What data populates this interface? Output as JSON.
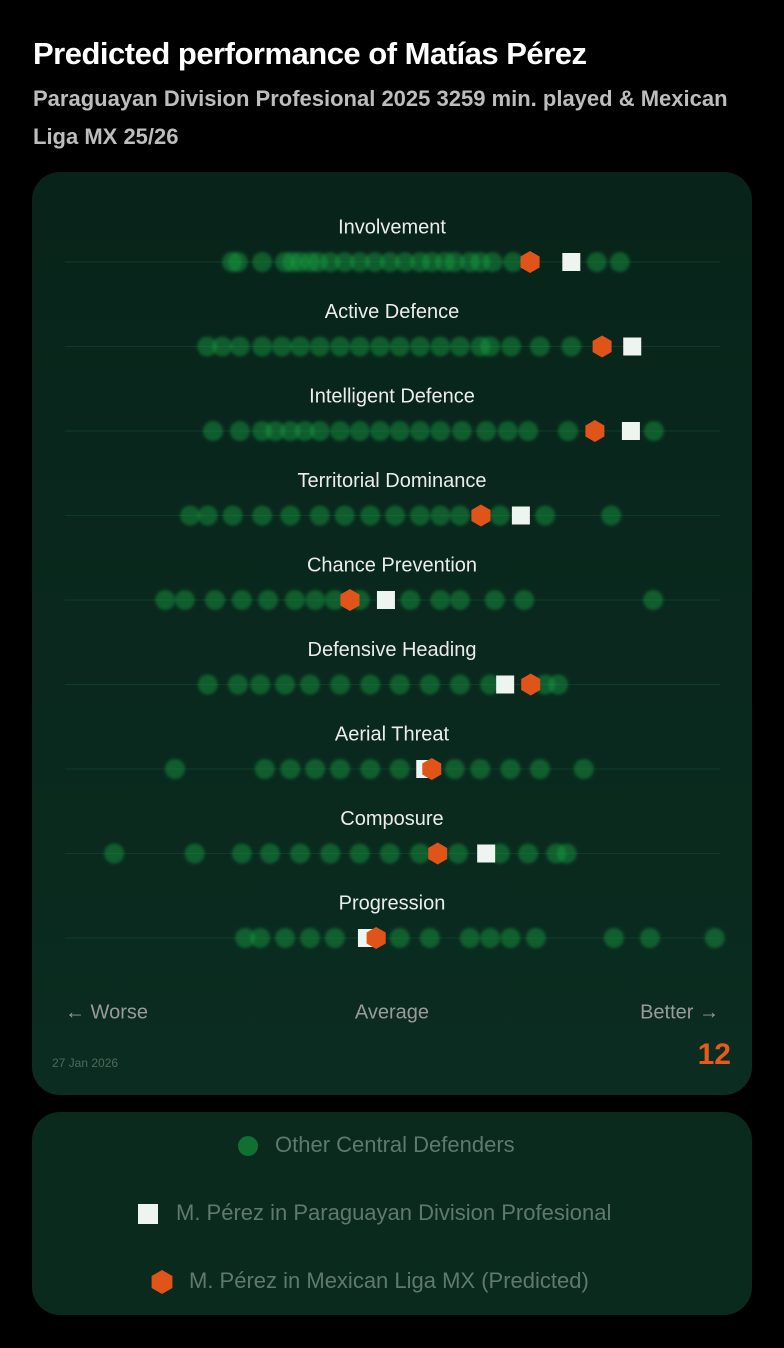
{
  "chart_data": {
    "type": "strip",
    "title": "Predicted performance of Matías Pérez",
    "subtitle": "Paraguayan Division Profesional 2025 3259 min. played & Mexican Liga MX 25/26",
    "categories": [
      "Involvement",
      "Active Defence",
      "Intelligent Defence",
      "Territorial Dominance",
      "Chance Prevention",
      "Defensive Heading",
      "Aerial Threat",
      "Composure",
      "Progression"
    ],
    "xlim": [
      0,
      100
    ],
    "x_labels": [
      "← Worse",
      "Average",
      "Better →"
    ],
    "date": "27 Jan 2026",
    "logo": "12",
    "series": [
      {
        "name": "Other Central Defenders",
        "color": "#13a040",
        "values": [
          [
            25.5,
            26.4,
            30.1,
            33.6,
            34.7,
            35.9,
            37.4,
            38.6,
            40.5,
            42.7,
            45.0,
            47.3,
            49.6,
            51.9,
            54.2,
            56.0,
            58.0,
            59.5,
            61.8,
            63.4,
            65.3,
            68.4,
            81.2,
            84.7
          ],
          [
            21.7,
            24.0,
            26.7,
            30.1,
            33.1,
            35.9,
            38.9,
            42.0,
            45.0,
            48.1,
            51.1,
            54.2,
            57.3,
            60.3,
            63.4,
            64.9,
            68.1,
            72.5,
            77.3
          ],
          [
            22.6,
            26.7,
            30.1,
            32.1,
            34.4,
            36.6,
            38.9,
            42.0,
            45.0,
            48.1,
            51.1,
            54.2,
            57.3,
            60.6,
            64.3,
            67.6,
            70.7,
            76.8,
            89.9
          ],
          [
            19.1,
            21.8,
            25.6,
            30.1,
            34.4,
            38.9,
            42.7,
            46.6,
            50.4,
            54.2,
            57.3,
            60.3,
            66.4,
            73.3,
            83.4
          ],
          [
            15.3,
            18.3,
            22.9,
            27.0,
            31.0,
            35.1,
            38.2,
            41.2,
            45.0,
            52.7,
            57.3,
            60.3,
            65.6,
            70.1,
            89.8
          ],
          [
            21.8,
            26.4,
            29.8,
            33.6,
            37.4,
            42.0,
            46.6,
            51.1,
            55.7,
            60.3,
            64.9,
            73.3,
            75.3
          ],
          [
            16.8,
            30.5,
            34.4,
            38.2,
            42.0,
            46.6,
            51.1,
            59.5,
            63.4,
            68.0,
            72.5,
            79.2
          ],
          [
            7.5,
            19.8,
            27.0,
            31.3,
            35.9,
            40.5,
            45.0,
            49.6,
            54.2,
            60.0,
            66.4,
            70.7,
            75.0,
            76.6
          ],
          [
            27.5,
            29.8,
            33.6,
            37.4,
            41.2,
            51.1,
            55.7,
            61.8,
            64.9,
            68.0,
            71.9,
            83.8,
            89.3,
            99.2
          ]
        ]
      },
      {
        "name": "M. Pérez in Paraguayan Division Profesional",
        "color": "#eef4f0",
        "values": [
          77.3,
          86.6,
          86.4,
          69.6,
          49.0,
          67.2,
          55.0,
          64.3,
          46.1
        ]
      },
      {
        "name": "M. Pérez in Mexican Liga MX (Predicted)",
        "color": "#e0541a",
        "values": [
          71.0,
          82.0,
          80.9,
          63.5,
          43.5,
          71.1,
          56.0,
          56.9,
          47.5
        ]
      }
    ]
  }
}
